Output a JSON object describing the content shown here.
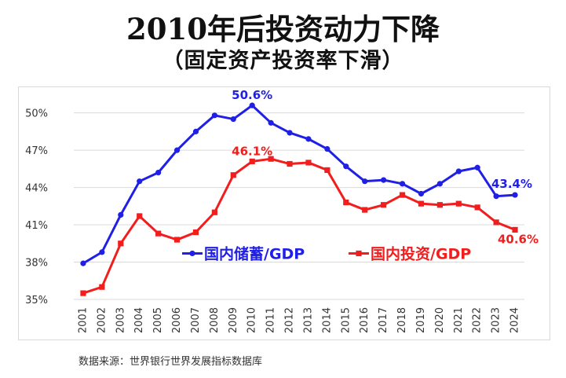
{
  "header": {
    "title": "2010年后投资动力下降",
    "subtitle": "（固定资产投资率下滑）"
  },
  "footer": {
    "source": "数据来源：世界银行世界发展指标数据库"
  },
  "colors": {
    "savings": "#1f1fe6",
    "investment": "#f21d1d",
    "grid": "#d9d9d9",
    "axis_text": "#333333"
  },
  "chart_data": {
    "type": "line",
    "title": "",
    "xlabel": "",
    "ylabel": "",
    "ylim": [
      35,
      52
    ],
    "yticks": [
      35,
      38,
      41,
      44,
      47,
      50
    ],
    "ytick_labels": [
      "35%",
      "38%",
      "41%",
      "44%",
      "47%",
      "50%"
    ],
    "grid": true,
    "legend": "center",
    "categories": [
      "2001",
      "2002",
      "2003",
      "2004",
      "2005",
      "2006",
      "2007",
      "2008",
      "2009",
      "2010",
      "2011",
      "2012",
      "2013",
      "2014",
      "2015",
      "2016",
      "2017",
      "2018",
      "2019",
      "2020",
      "2021",
      "2022",
      "2023",
      "2024"
    ],
    "series": [
      {
        "name": "国内储蓄/GDP",
        "color": "#1f1fe6",
        "marker": "circle",
        "values": [
          37.9,
          38.8,
          41.8,
          44.5,
          45.2,
          47.0,
          48.5,
          49.8,
          49.5,
          50.6,
          49.2,
          48.4,
          47.9,
          47.1,
          45.7,
          44.5,
          44.6,
          44.3,
          43.5,
          44.3,
          45.3,
          45.6,
          43.3,
          43.4
        ],
        "annotations": [
          {
            "index": 9,
            "label": "50.6%"
          },
          {
            "index": 23,
            "label": "43.4%"
          }
        ]
      },
      {
        "name": "国内投资/GDP",
        "color": "#f21d1d",
        "marker": "square",
        "values": [
          35.5,
          36.0,
          39.5,
          41.7,
          40.3,
          39.8,
          40.4,
          42.0,
          45.0,
          46.1,
          46.3,
          45.9,
          46.0,
          45.4,
          42.8,
          42.2,
          42.6,
          43.4,
          42.7,
          42.6,
          42.7,
          42.4,
          41.2,
          40.6
        ],
        "annotations": [
          {
            "index": 9,
            "label": "46.1%"
          },
          {
            "index": 23,
            "label": "40.6%"
          }
        ]
      }
    ]
  }
}
